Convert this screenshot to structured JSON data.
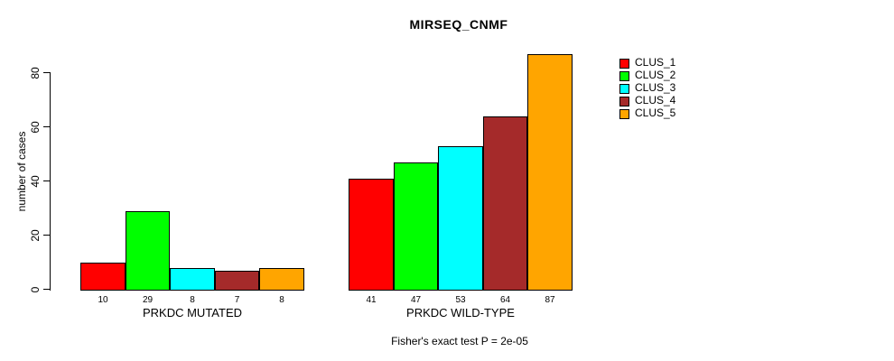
{
  "chart_data": {
    "type": "bar",
    "title": "MIRSEQ_CNMF",
    "ylabel": "number of cases",
    "xlabel": "",
    "categories": [
      "PRKDC MUTATED",
      "PRKDC WILD-TYPE"
    ],
    "series": [
      {
        "name": "CLUS_1",
        "color": "#FF0000",
        "values": [
          10,
          41
        ]
      },
      {
        "name": "CLUS_2",
        "color": "#00FF00",
        "values": [
          29,
          47
        ]
      },
      {
        "name": "CLUS_3",
        "color": "#00FFFF",
        "values": [
          8,
          53
        ]
      },
      {
        "name": "CLUS_4",
        "color": "#A52A2A",
        "values": [
          7,
          64
        ]
      },
      {
        "name": "CLUS_5",
        "color": "#FFA500",
        "values": [
          8,
          87
        ]
      }
    ],
    "yticks": [
      0,
      20,
      40,
      60,
      80
    ],
    "ylim": [
      0,
      88
    ],
    "grid": false,
    "legend_position": "right",
    "bar_value_labels_shown": true,
    "annotation": "Fisher's exact test P = 2e-05"
  }
}
